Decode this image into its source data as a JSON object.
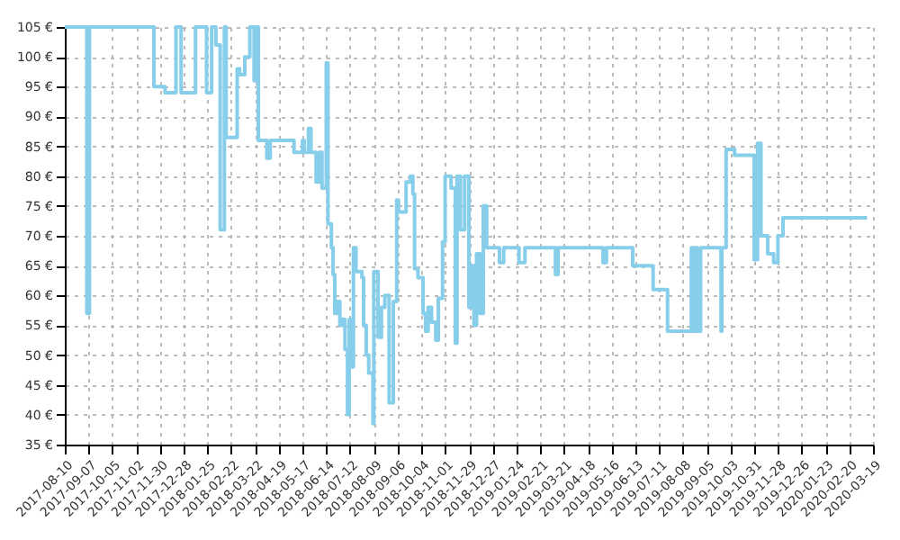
{
  "chart_data": {
    "type": "step",
    "series": [
      {
        "color": "#87ceeb",
        "x": [
          "2017-08-10",
          "2017-09-05",
          "2017-09-08",
          "2017-11-23",
          "2017-12-06",
          "2017-12-19",
          "2017-12-25",
          "2018-01-11",
          "2018-01-24",
          "2018-01-30",
          "2018-02-04",
          "2018-02-09",
          "2018-02-14",
          "2018-02-16",
          "2018-03-01",
          "2018-03-04",
          "2018-03-10",
          "2018-03-16",
          "2018-03-21",
          "2018-03-24",
          "2018-03-26",
          "2018-04-05",
          "2018-04-09",
          "2018-05-07",
          "2018-05-17",
          "2018-05-19",
          "2018-05-24",
          "2018-05-27",
          "2018-06-02",
          "2018-06-06",
          "2018-06-09",
          "2018-06-14",
          "2018-06-16",
          "2018-06-20",
          "2018-06-22",
          "2018-06-24",
          "2018-06-27",
          "2018-06-30",
          "2018-07-03",
          "2018-07-06",
          "2018-07-09",
          "2018-07-11",
          "2018-07-13",
          "2018-07-16",
          "2018-07-19",
          "2018-07-26",
          "2018-07-28",
          "2018-07-31",
          "2018-08-03",
          "2018-08-08",
          "2018-08-09",
          "2018-08-14",
          "2018-08-18",
          "2018-08-22",
          "2018-08-27",
          "2018-09-01",
          "2018-09-05",
          "2018-09-07",
          "2018-09-16",
          "2018-09-21",
          "2018-09-24",
          "2018-09-26",
          "2018-09-30",
          "2018-10-06",
          "2018-10-09",
          "2018-10-12",
          "2018-10-16",
          "2018-10-21",
          "2018-10-24",
          "2018-10-29",
          "2018-11-01",
          "2018-11-08",
          "2018-11-13",
          "2018-11-15",
          "2018-11-19",
          "2018-11-24",
          "2018-11-29",
          "2018-12-02",
          "2018-12-05",
          "2018-12-08",
          "2018-12-12",
          "2018-12-16",
          "2018-12-20",
          "2019-01-04",
          "2019-01-09",
          "2019-01-27",
          "2019-02-03",
          "2019-03-11",
          "2019-03-14",
          "2019-05-06",
          "2019-05-10",
          "2019-06-10",
          "2019-07-04",
          "2019-07-21",
          "2019-08-18",
          "2019-08-21",
          "2019-08-23",
          "2019-08-25",
          "2019-08-29",
          "2019-09-22",
          "2019-09-23",
          "2019-09-28",
          "2019-10-08",
          "2019-10-31",
          "2019-11-04",
          "2019-11-08",
          "2019-11-16",
          "2019-11-23",
          "2019-11-28",
          "2019-12-04",
          "2020-03-12"
        ],
        "values": [
          105,
          57,
          105,
          95,
          94,
          105,
          94,
          105,
          94,
          105,
          102,
          71,
          105,
          86.5,
          98,
          97,
          100,
          105,
          96,
          105,
          86,
          83,
          86,
          84,
          86,
          84,
          88,
          84,
          79,
          84,
          78,
          99,
          72,
          68,
          63.5,
          57,
          59,
          55,
          56,
          51,
          40,
          56,
          48,
          68,
          64,
          63,
          55,
          50,
          47,
          38.5,
          64,
          53,
          58,
          60,
          42,
          59,
          76,
          74,
          79,
          80,
          77,
          64.5,
          63,
          57,
          54,
          58,
          55.5,
          52.5,
          59.5,
          69,
          80,
          78,
          52,
          80,
          71,
          80,
          58,
          65,
          55,
          67,
          57,
          75,
          68,
          65.5,
          68,
          65.5,
          68,
          63.5,
          68,
          65.5,
          68,
          65,
          61,
          54,
          68,
          54,
          68,
          54,
          68,
          54,
          68,
          84.5,
          83.5,
          66,
          85.5,
          70,
          67,
          65.5,
          70,
          73,
          73
        ]
      }
    ],
    "xlim": [
      "2017-08-10",
      "2020-03-19"
    ],
    "xticks": [
      "2017-08-10",
      "2017-09-07",
      "2017-10-05",
      "2017-11-02",
      "2017-11-30",
      "2017-12-28",
      "2018-01-25",
      "2018-02-22",
      "2018-03-22",
      "2018-04-19",
      "2018-05-17",
      "2018-06-14",
      "2018-07-12",
      "2018-08-09",
      "2018-09-06",
      "2018-10-04",
      "2018-11-01",
      "2018-11-29",
      "2018-12-27",
      "2019-01-24",
      "2019-02-21",
      "2019-03-21",
      "2019-04-18",
      "2019-05-16",
      "2019-06-13",
      "2019-07-11",
      "2019-08-08",
      "2019-09-05",
      "2019-10-03",
      "2019-10-31",
      "2019-11-28",
      "2019-12-26",
      "2020-01-23",
      "2020-02-20",
      "2020-03-19"
    ],
    "ylim": [
      35,
      105
    ],
    "yticks": [
      {
        "value": 35,
        "label": "35 €"
      },
      {
        "value": 40,
        "label": "40 €"
      },
      {
        "value": 45,
        "label": "45 €"
      },
      {
        "value": 50,
        "label": "50 €"
      },
      {
        "value": 55,
        "label": "55 €"
      },
      {
        "value": 60,
        "label": "60 €"
      },
      {
        "value": 65,
        "label": "65 €"
      },
      {
        "value": 70,
        "label": "70 €"
      },
      {
        "value": 75,
        "label": "75 €"
      },
      {
        "value": 80,
        "label": "80 €"
      },
      {
        "value": 85,
        "label": "85 €"
      },
      {
        "value": 90,
        "label": "90 €"
      },
      {
        "value": 95,
        "label": "95 €"
      },
      {
        "value": 100,
        "label": "100 €"
      },
      {
        "value": 105,
        "label": "105 €"
      }
    ],
    "grid": true,
    "line_style": "solid",
    "marker": "none"
  }
}
